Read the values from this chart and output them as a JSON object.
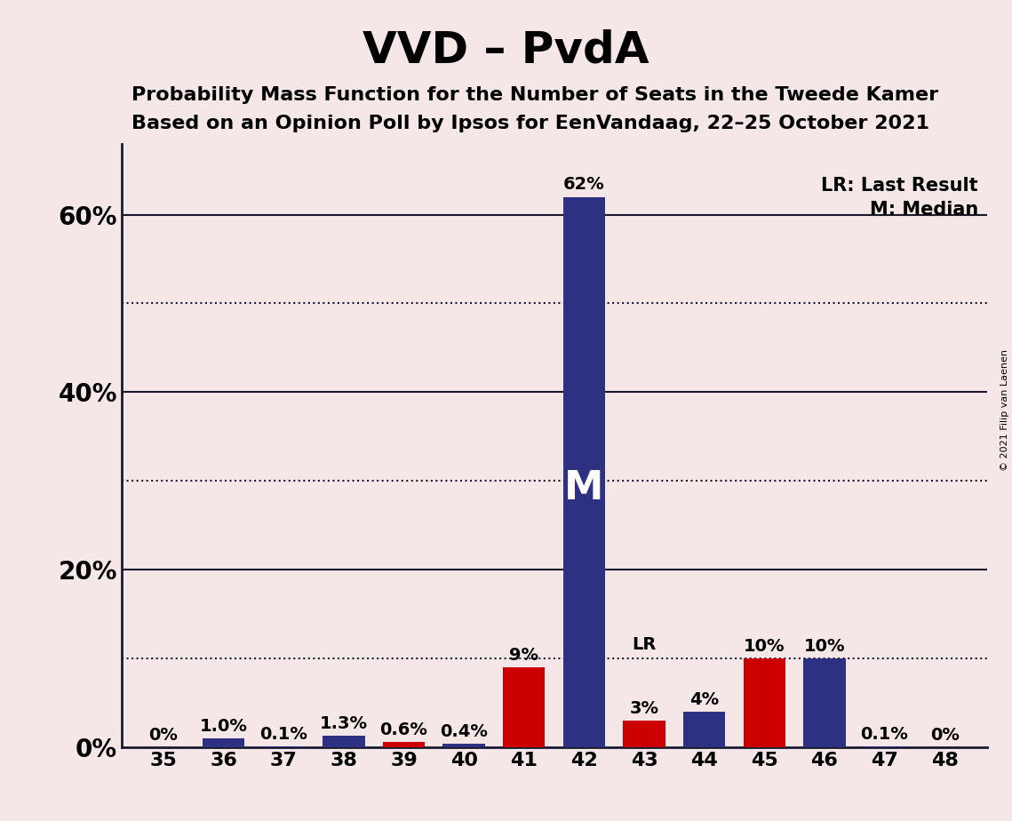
{
  "title": "VVD – PvdA",
  "subtitle1": "Probability Mass Function for the Number of Seats in the Tweede Kamer",
  "subtitle2": "Based on an Opinion Poll by Ipsos for EenVandaag, 22–25 October 2021",
  "copyright": "© 2021 Filip van Laenen",
  "legend1": "LR: Last Result",
  "legend2": "M: Median",
  "seats": [
    35,
    36,
    37,
    38,
    39,
    40,
    41,
    42,
    43,
    44,
    45,
    46,
    47,
    48
  ],
  "pmf_values": [
    0.0,
    1.0,
    0.1,
    1.3,
    0.6,
    0.4,
    9.0,
    62.0,
    3.0,
    4.0,
    10.0,
    10.0,
    0.1,
    0.0
  ],
  "bar_colors": [
    "#2e3181",
    "#2e3181",
    "#2e3181",
    "#2e3181",
    "#cc0000",
    "#2e3181",
    "#cc0000",
    "#2e3181",
    "#cc0000",
    "#2e3181",
    "#cc0000",
    "#2e3181",
    "#2e3181",
    "#2e3181"
  ],
  "label_texts": [
    "0%",
    "1.0%",
    "0.1%",
    "1.3%",
    "0.6%",
    "0.4%",
    "9%",
    "62%",
    "3%",
    "4%",
    "10%",
    "10%",
    "0.1%",
    "0%"
  ],
  "median_seat": 42,
  "lr_seat": 43,
  "background_color": "#f5e6e8",
  "bar_dark_blue": "#2e3181",
  "bar_red": "#cc0000",
  "title_fontsize": 36,
  "subtitle_fontsize": 16,
  "ylim": [
    0,
    68
  ],
  "solid_gridlines": [
    20,
    40,
    60
  ],
  "dotted_gridlines": [
    10,
    30,
    50
  ],
  "ytick_vals": [
    0,
    20,
    40,
    60
  ],
  "ytick_labels": [
    "0%",
    "20%",
    "40%",
    "60%"
  ]
}
